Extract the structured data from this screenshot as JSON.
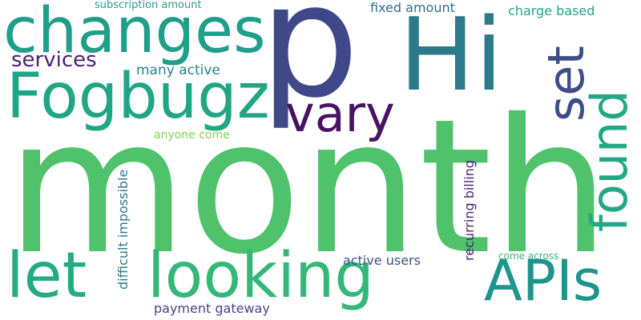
{
  "words": [
    {
      "id": "month",
      "text": "month",
      "color": "#4fc26b"
    },
    {
      "id": "p",
      "text": "p",
      "color": "#3f4989"
    },
    {
      "id": "hi",
      "text": "Hi",
      "color": "#2c7a8a"
    },
    {
      "id": "changes",
      "text": "changes",
      "color": "#1f9e89"
    },
    {
      "id": "fogbugz",
      "text": "Fogbugz",
      "color": "#21a685"
    },
    {
      "id": "let",
      "text": "let",
      "color": "#25ab82"
    },
    {
      "id": "looking",
      "text": "looking",
      "color": "#35b779"
    },
    {
      "id": "apis",
      "text": "APIs",
      "color": "#1f948c"
    },
    {
      "id": "vary",
      "text": "vary",
      "color": "#471365"
    },
    {
      "id": "set",
      "text": "set",
      "color": "#3e4c8a"
    },
    {
      "id": "found",
      "text": "found",
      "color": "#22a884"
    },
    {
      "id": "services",
      "text": "services",
      "color": "#482173"
    },
    {
      "id": "many-active",
      "text": "many active",
      "color": "#26828e"
    },
    {
      "id": "subscription-amount",
      "text": "subscription amount",
      "color": "#2a9d8a"
    },
    {
      "id": "fixed-amount",
      "text": "fixed amount",
      "color": "#2f6c8e"
    },
    {
      "id": "charge-based",
      "text": "charge based",
      "color": "#21a386"
    },
    {
      "id": "anyone-come",
      "text": "anyone come",
      "color": "#7fd34e"
    },
    {
      "id": "difficult-impossible",
      "text": "difficult impossible",
      "color": "#2a7b8e"
    },
    {
      "id": "recurring-billing",
      "text": "recurring billing",
      "color": "#481f70"
    },
    {
      "id": "active-users",
      "text": "active users",
      "color": "#3b528b"
    },
    {
      "id": "come-across",
      "text": "come across",
      "color": "#31b57b"
    },
    {
      "id": "payment-gateway",
      "text": "payment gateway",
      "color": "#414487"
    }
  ]
}
